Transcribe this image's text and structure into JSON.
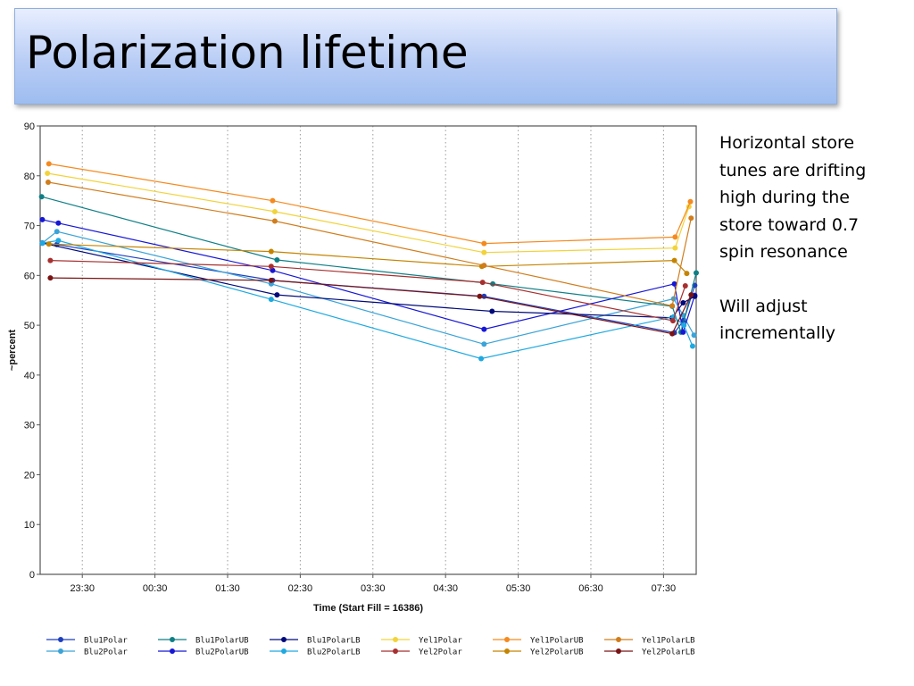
{
  "slide": {
    "title": "Polarization lifetime",
    "notes": [
      "Horizontal store tunes are drifting high during the store toward 0.7 spin resonance",
      "Will adjust incrementally"
    ]
  },
  "chart_data": {
    "type": "line",
    "title": "",
    "xlabel": "Time (Start Fill = 16386)",
    "ylabel": "~percent",
    "ylim": [
      0,
      90
    ],
    "yticks": [
      0,
      10,
      20,
      30,
      40,
      50,
      60,
      70,
      80,
      90
    ],
    "xlim": [
      22.92,
      31.95
    ],
    "xtick_labels": [
      "23:30",
      "00:30",
      "01:30",
      "02:30",
      "03:30",
      "04:30",
      "05:30",
      "06:30",
      "07:30"
    ],
    "xtick_values": [
      23.5,
      24.5,
      25.5,
      26.5,
      27.5,
      28.5,
      29.5,
      30.5,
      31.5
    ],
    "grid": "vertical dotted",
    "legend_position": "bottom",
    "series": [
      {
        "name": "Blu1Polar",
        "color": "#1c3fbf",
        "x": [
          22.95,
          23.15,
          26.12,
          29.03,
          31.65,
          31.78,
          31.93
        ],
        "y": [
          66.5,
          66.2,
          59.0,
          55.8,
          48.5,
          51.0,
          58.0
        ]
      },
      {
        "name": "Blu2Polar",
        "color": "#3aa3d8",
        "x": [
          22.95,
          23.15,
          26.1,
          29.03,
          31.64,
          31.77,
          31.92
        ],
        "y": [
          66.5,
          68.8,
          58.3,
          46.2,
          55.3,
          52.0,
          48.0
        ]
      },
      {
        "name": "Blu1PolarUB",
        "color": "#0f7f86",
        "x": [
          22.94,
          26.18,
          29.15,
          31.62,
          31.74,
          31.95
        ],
        "y": [
          75.8,
          63.1,
          58.3,
          53.8,
          48.6,
          60.5
        ]
      },
      {
        "name": "Blu2PolarUB",
        "color": "#1717d6",
        "x": [
          22.95,
          23.17,
          26.12,
          29.03,
          31.65,
          31.77,
          31.93
        ],
        "y": [
          71.2,
          70.5,
          61.0,
          49.2,
          58.3,
          48.6,
          56.0
        ]
      },
      {
        "name": "Blu1PolarLB",
        "color": "#000a7a",
        "x": [
          22.95,
          26.18,
          29.14,
          31.62,
          31.77,
          31.93
        ],
        "y": [
          66.5,
          56.1,
          52.8,
          51.5,
          54.5,
          55.8
        ]
      },
      {
        "name": "Blu2PolarLB",
        "color": "#1ea9e0",
        "x": [
          22.95,
          23.17,
          26.1,
          28.99,
          31.64,
          31.78,
          31.9
        ],
        "y": [
          66.5,
          67.0,
          55.2,
          43.3,
          51.7,
          50.0,
          45.8
        ]
      },
      {
        "name": "Yel1Polar",
        "color": "#f2d33a",
        "x": [
          23.02,
          26.15,
          29.03,
          31.66,
          31.85
        ],
        "y": [
          80.5,
          72.8,
          64.6,
          65.5,
          73.8
        ]
      },
      {
        "name": "Yel2Polar",
        "color": "#a82f2f",
        "x": [
          23.06,
          26.1,
          29.01,
          31.63,
          31.8
        ],
        "y": [
          63.0,
          61.8,
          58.6,
          50.9,
          57.9
        ]
      },
      {
        "name": "Yel1PolarUB",
        "color": "#f58a1f",
        "x": [
          23.04,
          26.12,
          29.03,
          31.66,
          31.87
        ],
        "y": [
          82.4,
          75.0,
          66.4,
          67.7,
          74.8
        ]
      },
      {
        "name": "Yel2PolarUB",
        "color": "#c58400",
        "x": [
          23.04,
          26.1,
          29.0,
          31.65,
          31.82
        ],
        "y": [
          66.3,
          64.8,
          61.8,
          63.0,
          60.4
        ]
      },
      {
        "name": "Yel1PolarLB",
        "color": "#d07d1c",
        "x": [
          23.03,
          26.15,
          29.03,
          31.62,
          31.88
        ],
        "y": [
          78.7,
          70.9,
          62.0,
          53.9,
          71.5
        ]
      },
      {
        "name": "Yel2PolarLB",
        "color": "#7a1414",
        "x": [
          23.06,
          26.1,
          28.97,
          31.62,
          31.88
        ],
        "y": [
          59.5,
          59.0,
          55.8,
          48.3,
          56.1
        ]
      }
    ]
  }
}
